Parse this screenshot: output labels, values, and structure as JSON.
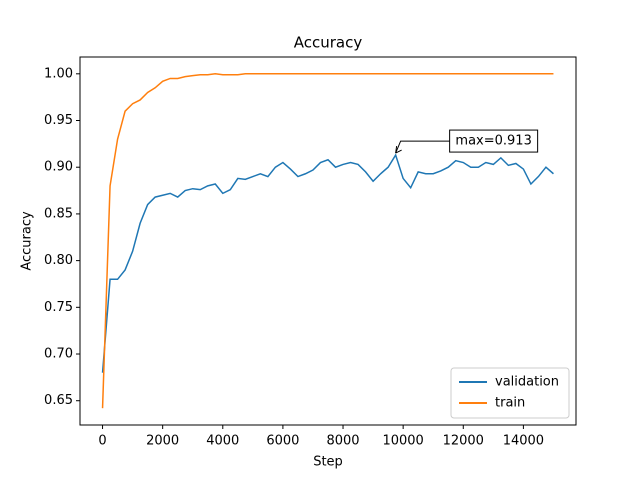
{
  "chart_data": {
    "type": "line",
    "title": "Accuracy",
    "x_label": "Step",
    "y_label": "Accuracy",
    "x": [
      0,
      250,
      500,
      750,
      1000,
      1250,
      1500,
      1750,
      2000,
      2250,
      2500,
      2750,
      3000,
      3250,
      3500,
      3750,
      4000,
      4250,
      4500,
      4750,
      5000,
      5250,
      5500,
      5750,
      6000,
      6250,
      6500,
      6750,
      7000,
      7250,
      7500,
      7750,
      8000,
      8250,
      8500,
      8750,
      9000,
      9250,
      9500,
      9750,
      10000,
      10250,
      10500,
      10750,
      11000,
      11250,
      11500,
      11750,
      12000,
      12250,
      12500,
      12750,
      13000,
      13250,
      13500,
      13750,
      14000,
      14250,
      14500,
      14750,
      15000
    ],
    "series": [
      {
        "name": "validation",
        "color": "#1f77b4",
        "values": [
          0.68,
          0.78,
          0.78,
          0.79,
          0.81,
          0.84,
          0.86,
          0.868,
          0.87,
          0.872,
          0.868,
          0.875,
          0.877,
          0.876,
          0.88,
          0.882,
          0.872,
          0.876,
          0.888,
          0.887,
          0.89,
          0.893,
          0.89,
          0.9,
          0.905,
          0.898,
          0.89,
          0.893,
          0.897,
          0.905,
          0.908,
          0.9,
          0.903,
          0.905,
          0.903,
          0.895,
          0.885,
          0.893,
          0.9,
          0.913,
          0.888,
          0.878,
          0.895,
          0.893,
          0.893,
          0.896,
          0.9,
          0.907,
          0.905,
          0.9,
          0.9,
          0.905,
          0.903,
          0.91,
          0.902,
          0.904,
          0.898,
          0.882,
          0.89,
          0.9,
          0.893
        ]
      },
      {
        "name": "train",
        "color": "#ff7f0e",
        "values": [
          0.642,
          0.88,
          0.93,
          0.96,
          0.968,
          0.972,
          0.98,
          0.985,
          0.992,
          0.995,
          0.995,
          0.997,
          0.998,
          0.999,
          0.999,
          1.0,
          0.999,
          0.999,
          0.999,
          1.0,
          1.0,
          1.0,
          1.0,
          1.0,
          1.0,
          1.0,
          1.0,
          1.0,
          1.0,
          1.0,
          1.0,
          1.0,
          1.0,
          1.0,
          1.0,
          1.0,
          1.0,
          1.0,
          1.0,
          1.0,
          1.0,
          1.0,
          1.0,
          1.0,
          1.0,
          1.0,
          1.0,
          1.0,
          1.0,
          1.0,
          1.0,
          1.0,
          1.0,
          1.0,
          1.0,
          1.0,
          1.0,
          1.0,
          1.0,
          1.0,
          1.0
        ]
      }
    ],
    "annotations": [
      {
        "text": "max=0.913",
        "x": 9750,
        "y": 0.913
      }
    ],
    "xlim": [
      -750,
      15750
    ],
    "ylim": [
      0.624,
      1.018
    ],
    "xticks": [
      0,
      2000,
      4000,
      6000,
      8000,
      10000,
      12000,
      14000
    ],
    "yticks": [
      {
        "value": 0.65,
        "label": "0.65"
      },
      {
        "value": 0.7,
        "label": "0.70"
      },
      {
        "value": 0.75,
        "label": "0.75"
      },
      {
        "value": 0.8,
        "label": "0.80"
      },
      {
        "value": 0.85,
        "label": "0.85"
      },
      {
        "value": 0.9,
        "label": "0.90"
      },
      {
        "value": 0.95,
        "label": "0.95"
      },
      {
        "value": 1.0,
        "label": "1.00"
      }
    ],
    "legend": "lower right"
  }
}
